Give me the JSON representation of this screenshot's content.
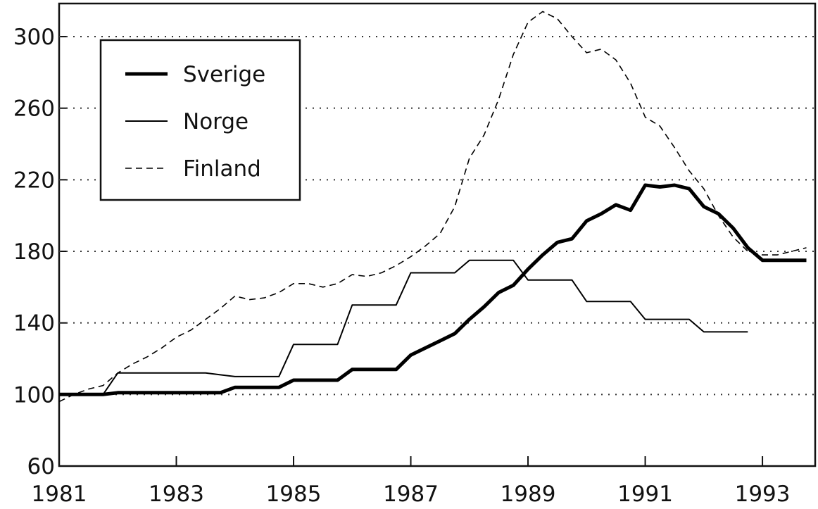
{
  "chart_data": {
    "type": "line",
    "x": [
      1981,
      1981.25,
      1981.5,
      1981.75,
      1982,
      1982.25,
      1982.5,
      1982.75,
      1983,
      1983.25,
      1983.5,
      1983.75,
      1984,
      1984.25,
      1984.5,
      1984.75,
      1985,
      1985.25,
      1985.5,
      1985.75,
      1986,
      1986.25,
      1986.5,
      1986.75,
      1987,
      1987.25,
      1987.5,
      1987.75,
      1988,
      1988.25,
      1988.5,
      1988.75,
      1989,
      1989.25,
      1989.5,
      1989.75,
      1990,
      1990.25,
      1990.5,
      1990.75,
      1991,
      1991.25,
      1991.5,
      1991.75,
      1992,
      1992.25,
      1992.5,
      1992.75,
      1993,
      1993.25,
      1993.5,
      1993.75
    ],
    "series": [
      {
        "name": "Sverige",
        "color": "#000000",
        "linewidth": 5,
        "dashed": false,
        "values": [
          100,
          100,
          100,
          100,
          101,
          101,
          101,
          101,
          101,
          101,
          101,
          101,
          104,
          104,
          104,
          104,
          108,
          108,
          108,
          108,
          114,
          114,
          114,
          114,
          122,
          126,
          130,
          134,
          142,
          149,
          157,
          161,
          170,
          178,
          185,
          187,
          197,
          201,
          206,
          203,
          217,
          216,
          217,
          215,
          205,
          201,
          193,
          182,
          175,
          175,
          175,
          175
        ]
      },
      {
        "name": "Norge",
        "color": "#000000",
        "linewidth": 2,
        "dashed": false,
        "values": [
          100,
          100,
          100,
          100,
          112,
          112,
          112,
          112,
          112,
          112,
          112,
          111,
          110,
          110,
          110,
          110,
          128,
          128,
          128,
          128,
          150,
          150,
          150,
          150,
          168,
          168,
          168,
          168,
          175,
          175,
          175,
          175,
          164,
          164,
          164,
          164,
          152,
          152,
          152,
          152,
          142,
          142,
          142,
          142,
          135,
          135,
          135,
          135,
          null,
          null,
          null,
          null
        ]
      },
      {
        "name": "Finland",
        "color": "#000000",
        "linewidth": 1.6,
        "dashed": true,
        "values": [
          96,
          100,
          103,
          105,
          112,
          117,
          121,
          126,
          132,
          136,
          142,
          148,
          155,
          153,
          154,
          157,
          162,
          162,
          160,
          162,
          167,
          166,
          168,
          172,
          177,
          183,
          190,
          205,
          232,
          245,
          265,
          290,
          308,
          314,
          310,
          300,
          291,
          293,
          287,
          274,
          255,
          250,
          238,
          225,
          215,
          200,
          188,
          180,
          178,
          178,
          180,
          182
        ]
      }
    ],
    "xlim": [
      1981,
      1993.9
    ],
    "xticks": [
      1981,
      1983,
      1985,
      1987,
      1989,
      1991,
      1993
    ],
    "ylim": [
      60,
      318.5
    ],
    "yticks": [
      60,
      100,
      140,
      180,
      220,
      260,
      300
    ],
    "grid": true,
    "legend": "upper left"
  }
}
